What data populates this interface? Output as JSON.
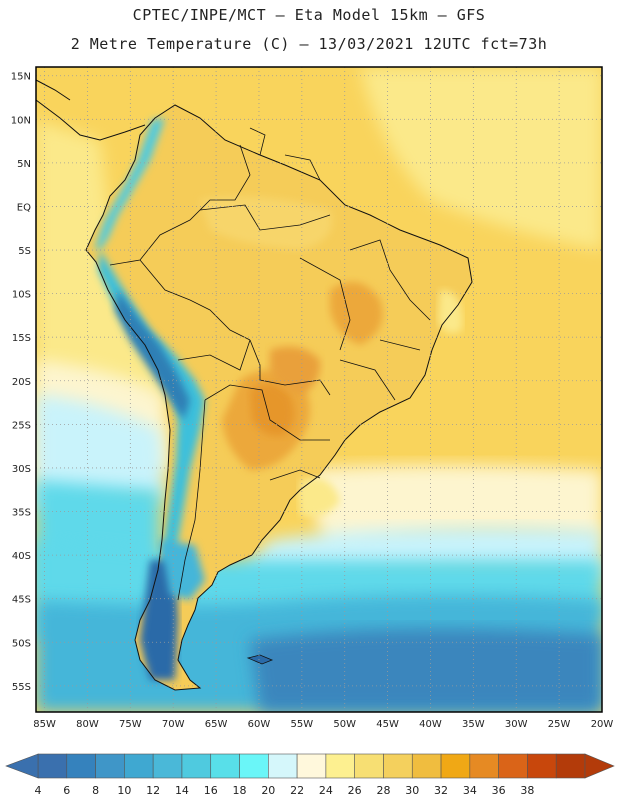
{
  "title": {
    "line1": "CPTEC/INPE/MCT –  Eta Model 15km – GFS",
    "line2": "2 Metre Temperature (C) – 13/03/2021 12UTC fct=73h"
  },
  "map": {
    "lon_range": [
      -86,
      -20
    ],
    "lat_range": [
      -58,
      16
    ],
    "lat_ticks": [
      "15N",
      "10N",
      "5N",
      "EQ",
      "5S",
      "10S",
      "15S",
      "20S",
      "25S",
      "30S",
      "35S",
      "40S",
      "45S",
      "50S",
      "55S"
    ],
    "lon_ticks": [
      "85W",
      "80W",
      "75W",
      "70W",
      "65W",
      "60W",
      "55W",
      "50W",
      "45W",
      "40W",
      "35W",
      "30W",
      "25W",
      "20W"
    ],
    "ocean_bands": [
      {
        "name": "warm-tropics",
        "color": "#f9d45c"
      },
      {
        "name": "subtropic",
        "color": "#fbe98a"
      },
      {
        "name": "subtropic-pale",
        "color": "#fdf5cf"
      },
      {
        "name": "cool",
        "color": "#c9f3fb"
      },
      {
        "name": "cold",
        "color": "#5fd9ea"
      },
      {
        "name": "colder",
        "color": "#44b6d9"
      },
      {
        "name": "coldest",
        "color": "#3a86bd"
      }
    ],
    "land_colors": {
      "amazon": "#f5cc58",
      "interior_hot": "#eca83a",
      "chaco": "#e6962c",
      "andes_high": "#3ec0db",
      "andes_peak": "#2f7fb5",
      "patagonia": "#2a6aa8"
    }
  },
  "colorbar": {
    "labels": [
      "4",
      "6",
      "8",
      "10",
      "12",
      "14",
      "16",
      "18",
      "20",
      "22",
      "24",
      "26",
      "28",
      "30",
      "32",
      "34",
      "36",
      "38"
    ],
    "colors": [
      "#3a70ae",
      "#3582bd",
      "#3f96c8",
      "#3fa8d1",
      "#4ab8d8",
      "#4fcadf",
      "#58dfe9",
      "#6af6f8",
      "#d5f7fb",
      "#fff8dc",
      "#fdf090",
      "#f7df73",
      "#f4d05d",
      "#f0bd3f",
      "#f0a815",
      "#e68a23",
      "#da6418",
      "#c8470c",
      "#b33b0a"
    ]
  }
}
